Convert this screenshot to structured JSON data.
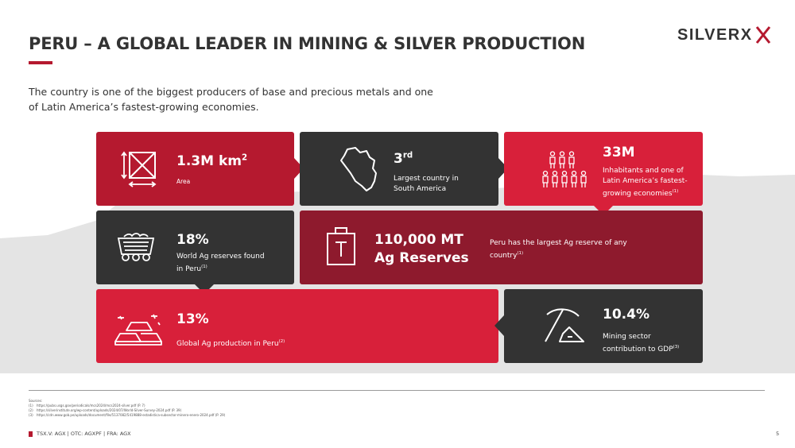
{
  "title": "PERU – A GLOBAL LEADER IN MINING & SILVER PRODUCTION",
  "logo": {
    "text": "SILVERX",
    "icon": "silverx-logo"
  },
  "intro": "The country is one of the biggest producers of base and precious metals and one of Latin America’s fastest-growing economies.",
  "tiles": {
    "area": {
      "value": "1.3M km",
      "sup": "2",
      "label": "Area",
      "icon": "area-measure-icon"
    },
    "country": {
      "value": "3",
      "sup": "rd",
      "label": "Largest country in South America",
      "icon": "peru-map-icon"
    },
    "inhabitants": {
      "value": "33M",
      "label": "Inhabitants and one of Latin America’s fastest-growing economies",
      "sup": "(1)",
      "icon": "people-icon"
    },
    "reserves_found": {
      "value": "18%",
      "label": "World Ag reserves found in Peru",
      "sup": "(1)",
      "icon": "mine-cart-icon"
    },
    "ag_reserves": {
      "value_line1": "110,000 MT",
      "value_line2": "Ag Reserves",
      "label": "Peru has the largest Ag reserve of any country",
      "sup": "(1)",
      "icon": "weight-icon"
    },
    "production": {
      "value": "13%",
      "label": "Global Ag production in Peru",
      "sup": "(2)",
      "icon": "silver-bars-icon"
    },
    "gdp": {
      "value": "10.4%",
      "label": "Mining sector contribution to GDP",
      "sup": "(3)",
      "icon": "pickaxe-icon"
    }
  },
  "sources": {
    "heading": "Sources:",
    "items": [
      {
        "num": "(1)",
        "text": "https://pubs.usgs.gov/periodicals/mcs2024/mcs2024-silver.pdf (P. 7)"
      },
      {
        "num": "(2)",
        "text": "https://silverinstitute.org/wp-content/uploads/2024/07/World-Silver-Survey-2024.pdf (P. 39)"
      },
      {
        "num": "(3)",
        "text": "https://cdn.www.gob.pe/uploads/document/file/5137082/5419888-estadistica-subsector-minero-enero-2024.pdf (P. 29)"
      }
    ]
  },
  "footer": "TSX.V: AGX  |  OTC: AGXPF  |  FRA: AGX",
  "page_number": "5",
  "colors": {
    "accent_red": "#b5192f",
    "bright_red": "#d8203a",
    "maroon": "#8e1a2d",
    "dark": "#333333",
    "mountain": "#e4e4e4"
  }
}
